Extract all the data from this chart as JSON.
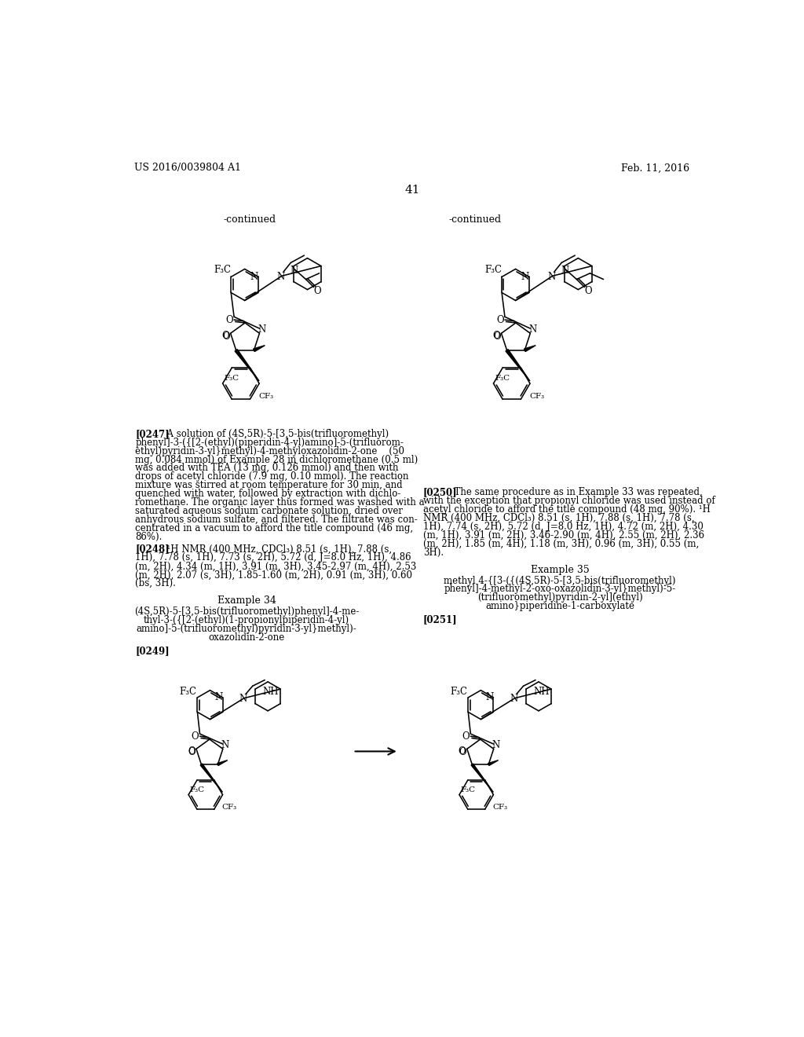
{
  "page_width": 10.24,
  "page_height": 13.2,
  "background_color": "#ffffff",
  "header_left": "US 2016/0039804 A1",
  "header_right": "Feb. 11, 2016",
  "page_number": "41",
  "continued_left": "-continued",
  "continued_right": "-continued",
  "example34_title": "Example 34",
  "example34_lines": [
    "(4S,5R)-5-[3,5-bis(trifluoromethyl)phenyl]-4-me-",
    "thyl-3-({[2-(ethyl)(1-propionylpiperidin-4-yl)",
    "amino]-5-(trifluoromethyl)pyridin-3-yl}methyl)-",
    "oxazolidin-2-one"
  ],
  "example35_title": "Example 35",
  "example35_lines": [
    "methyl 4-{[3-({(4S,5R)-5-[3,5-bis(trifluoromethyl)",
    "phenyl]-4-methyl-2-oxo-oxazolidin-3-yl}methyl)-5-",
    "(trifluoromethyl)pyridin-2-yl](ethyl)",
    "amino}piperidine-1-carboxylate"
  ],
  "para0247_lines": [
    "[0247]   A solution of (4S,5R)-5-[3,5-bis(trifluoromethyl)",
    "phenyl]-3-({[2-(ethyl)(piperidin-4-yl)amino]-5-(trifluorom-",
    "ethyl)pyridin-3-yl}methyl)-4-methyloxazolidin-2-one    (50",
    "mg, 0.084 mmol) of Example 28 in dichloromethane (0.5 ml)",
    "was added with TEA (13 mg, 0.126 mmol) and then with",
    "drops of acetyl chloride (7.9 mg, 0.10 mmol). The reaction",
    "mixture was stirred at room temperature for 30 min, and",
    "quenched with water, followed by extraction with dichlo-",
    "romethane. The organic layer thus formed was washed with a",
    "saturated aqueous sodium carbonate solution, dried over",
    "anhydrous sodium sulfate, and filtered. The filtrate was con-",
    "centrated in a vacuum to afford the title compound (46 mg,",
    "86%)."
  ],
  "para0248_lines": [
    "[0248]   ¹H NMR (400 MHz, CDCl₃) 8.51 (s, 1H), 7.88 (s,",
    "1H), 7.78 (s, 1H), 7.73 (s, 2H), 5.72 (d, J=8.0 Hz, 1H), 4.86",
    "(m, 2H), 4.34 (m, 1H), 3.91 (m, 3H), 3.45-2.97 (m, 4H), 2.53",
    "(m, 2H), 2.07 (s, 3H), 1.85-1.60 (m, 2H), 0.91 (m, 3H), 0.60",
    "(bs, 3H)."
  ],
  "para0249": "[0249]",
  "para0250_lines": [
    "[0250]   The same procedure as in Example 33 was repeated,",
    "with the exception that propionyl chloride was used instead of",
    "acetyl chloride to afford the title compound (48 mg, 90%). ¹H",
    "NMR (400 MHz, CDCl₃) 8.51 (s, 1H), 7.88 (s, 1H), 7.78 (s,",
    "1H), 7.74 (s, 2H), 5.72 (d, J=8.0 Hz, 1H), 4.72 (m, 2H), 4.30",
    "(m, 1H), 3.91 (m, 2H), 3.46-2.90 (m, 4H), 2.55 (m, 2H), 2.36",
    "(m, 2H), 1.85 (m, 4H), 1.18 (m, 3H), 0.96 (m, 3H), 0.55 (m,",
    "3H)."
  ],
  "para0251": "[0251]"
}
